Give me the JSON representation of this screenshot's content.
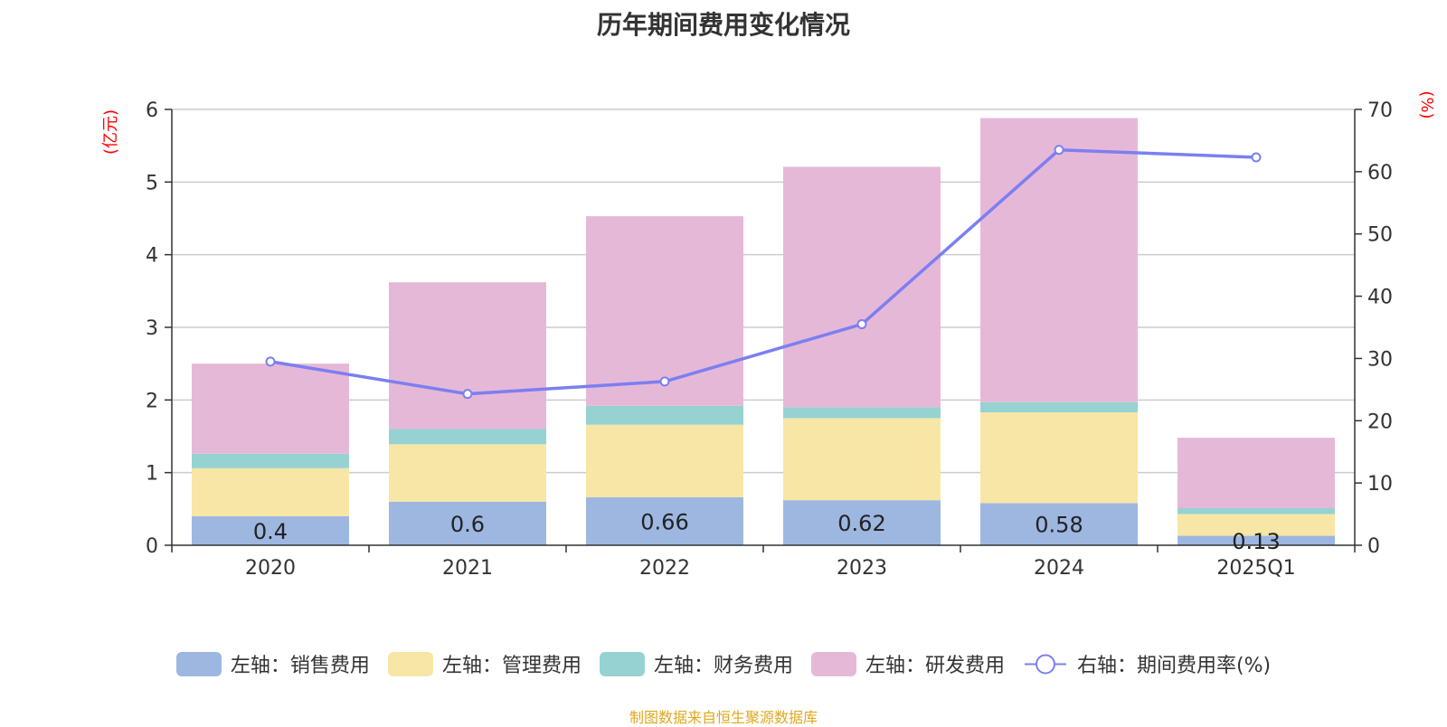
{
  "chart_data": {
    "type": "bar",
    "stacked": true,
    "title": "历年期间费用变化情况",
    "categories": [
      "2020",
      "2021",
      "2022",
      "2023",
      "2024",
      "2025Q1"
    ],
    "y_left": {
      "label": "(亿元)",
      "ylim": [
        0,
        6
      ],
      "ticks": [
        0,
        1,
        2,
        3,
        4,
        5,
        6
      ]
    },
    "y_right": {
      "label": "(%)",
      "ylim": [
        0,
        70
      ],
      "ticks": [
        0,
        10,
        20,
        30,
        40,
        50,
        60,
        70
      ]
    },
    "series": [
      {
        "name": "左轴：销售费用",
        "axis": "left",
        "color": "#9db7e1",
        "values": [
          0.4,
          0.6,
          0.66,
          0.62,
          0.58,
          0.13
        ],
        "show_labels": true
      },
      {
        "name": "左轴：管理费用",
        "axis": "left",
        "color": "#f7e6a6",
        "values": [
          0.66,
          0.79,
          1.0,
          1.13,
          1.25,
          0.3
        ]
      },
      {
        "name": "左轴：财务费用",
        "axis": "left",
        "color": "#96d2d2",
        "values": [
          0.2,
          0.21,
          0.26,
          0.15,
          0.14,
          0.08
        ]
      },
      {
        "name": "左轴：研发费用",
        "axis": "left",
        "color": "#e6b8d8",
        "values": [
          1.24,
          2.02,
          2.61,
          3.31,
          3.91,
          0.97
        ]
      },
      {
        "name": "右轴：期间费用率(%)",
        "axis": "right",
        "type": "line",
        "color": "#7b7ff0",
        "values": [
          29.5,
          24.3,
          26.3,
          35.5,
          63.5,
          62.3
        ]
      }
    ],
    "legend_position": "bottom",
    "grid": true
  },
  "source_text": "制图数据来自恒生聚源数据库",
  "source_color": "#e0a81c",
  "axis_label_color": "#ff0000"
}
